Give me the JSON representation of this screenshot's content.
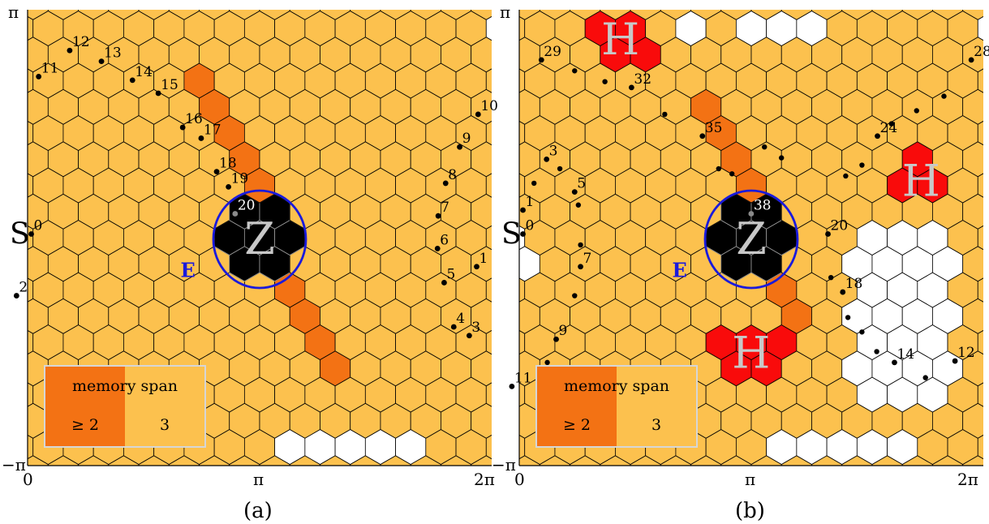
{
  "colors": {
    "hex_default": "#fcc14e",
    "hex_dark": "#f37214",
    "hex_black": "#000000",
    "hex_red": "#f90b0b",
    "hex_white": "#ffffff",
    "ellipse": "#1a1adc",
    "big_letter": "#c8c8c8"
  },
  "axis_labels": {
    "y_top": "π",
    "y_bottom": "−π",
    "x_0": "0",
    "x_pi": "π",
    "x_2pi": "2π"
  },
  "panels": [
    {
      "id": "a",
      "caption": "(a)",
      "start_label": "S",
      "ellipse_label": "E",
      "center_label": "Z",
      "hole_label": "H",
      "legend": {
        "title": "memory span",
        "left_value": "≥ 2",
        "right_value": "3"
      },
      "points": [
        {
          "n": "0",
          "x": 0.05,
          "y": 0.05
        },
        {
          "n": "1",
          "x": 6.08,
          "y": -0.4
        },
        {
          "n": "2",
          "x": -0.15,
          "y": -0.8
        },
        {
          "n": "3",
          "x": 5.98,
          "y": -1.35
        },
        {
          "n": "4",
          "x": 5.77,
          "y": -1.23
        },
        {
          "n": "5",
          "x": 5.64,
          "y": -0.62
        },
        {
          "n": "6",
          "x": 5.55,
          "y": -0.15
        },
        {
          "n": "7",
          "x": 5.56,
          "y": 0.3
        },
        {
          "n": "8",
          "x": 5.66,
          "y": 0.75
        },
        {
          "n": "9",
          "x": 5.85,
          "y": 1.25
        },
        {
          "n": "10",
          "x": 6.1,
          "y": 1.7
        },
        {
          "n": "11",
          "x": 0.15,
          "y": 2.22
        },
        {
          "n": "12",
          "x": 0.57,
          "y": 2.58
        },
        {
          "n": "13",
          "x": 1.0,
          "y": 2.43
        },
        {
          "n": "14",
          "x": 1.42,
          "y": 2.17
        },
        {
          "n": "15",
          "x": 1.77,
          "y": 1.99
        },
        {
          "n": "16",
          "x": 2.1,
          "y": 1.52
        },
        {
          "n": "17",
          "x": 2.35,
          "y": 1.37
        },
        {
          "n": "18",
          "x": 2.56,
          "y": 0.91
        },
        {
          "n": "19",
          "x": 2.72,
          "y": 0.7
        },
        {
          "n": "20",
          "x": 2.81,
          "y": 0.33,
          "white": true
        }
      ],
      "holes": [],
      "dark_cells": [
        [
          -2,
          6
        ],
        [
          -2,
          5
        ],
        [
          -1,
          4
        ],
        [
          -1,
          3
        ],
        [
          0,
          2
        ],
        [
          1,
          -2
        ],
        [
          1,
          -3
        ],
        [
          2,
          -4
        ],
        [
          2,
          -5
        ]
      ],
      "white_cells": [
        [
          1,
          -8
        ],
        [
          2,
          -8
        ],
        [
          3,
          -8
        ],
        [
          4,
          -8
        ],
        [
          5,
          -8
        ],
        [
          8,
          8
        ],
        [
          9,
          8
        ],
        [
          10,
          8
        ],
        [
          11,
          8
        ],
        [
          12,
          8
        ]
      ],
      "center_label_pos": [
        3.14,
        0.0
      ],
      "s_label_pos": [
        0.0,
        0.05
      ],
      "e_label_pos": [
        2.4,
        -0.45
      ]
    },
    {
      "id": "b",
      "caption": "(b)",
      "start_label": "S",
      "ellipse_label": "E",
      "center_label": "Z",
      "hole_label": "H",
      "legend": {
        "title": "memory span",
        "left_value": "≥ 2",
        "right_value": "3"
      },
      "points": [
        {
          "n": "0",
          "x": 0.05,
          "y": 0.05
        },
        {
          "n": "1",
          "x": 0.05,
          "y": 0.38
        },
        {
          "n": "3",
          "x": 0.37,
          "y": 1.08
        },
        {
          "n": "5",
          "x": 0.75,
          "y": 0.63
        },
        {
          "n": "7",
          "x": 0.83,
          "y": -0.4
        },
        {
          "n": "9",
          "x": 0.5,
          "y": -1.4
        },
        {
          "n": "11",
          "x": -0.1,
          "y": -2.05
        },
        {
          "n": "12",
          "x": 5.9,
          "y": -1.7
        },
        {
          "n": "14",
          "x": 5.08,
          "y": -1.72
        },
        {
          "n": "18",
          "x": 4.38,
          "y": -0.75
        },
        {
          "n": "20",
          "x": 4.18,
          "y": 0.05
        },
        {
          "n": "24",
          "x": 4.85,
          "y": 1.4
        },
        {
          "n": "28",
          "x": 6.12,
          "y": 2.45
        },
        {
          "n": "29",
          "x": 0.3,
          "y": 2.45
        },
        {
          "n": "32",
          "x": 1.52,
          "y": 2.07
        },
        {
          "n": "35",
          "x": 2.48,
          "y": 1.4
        },
        {
          "n": "38",
          "x": 3.14,
          "y": 0.33,
          "white": true
        }
      ],
      "extra_dots": [
        [
          0.2,
          0.75
        ],
        [
          0.55,
          0.95
        ],
        [
          0.8,
          0.45
        ],
        [
          0.83,
          -0.1
        ],
        [
          0.75,
          -0.8
        ],
        [
          0.38,
          -1.72
        ],
        [
          0.75,
          2.3
        ],
        [
          1.16,
          2.15
        ],
        [
          1.97,
          1.7
        ],
        [
          2.7,
          0.95
        ],
        [
          2.88,
          0.88
        ],
        [
          4.22,
          -0.55
        ],
        [
          4.45,
          -1.1
        ],
        [
          4.64,
          -1.3
        ],
        [
          4.84,
          -1.57
        ],
        [
          5.5,
          -1.93
        ],
        [
          4.42,
          0.85
        ],
        [
          4.64,
          1.0
        ],
        [
          5.04,
          1.57
        ],
        [
          5.38,
          1.75
        ],
        [
          5.75,
          1.95
        ],
        [
          3.32,
          1.25
        ],
        [
          3.55,
          1.1
        ]
      ],
      "holes": [
        [
          1.37,
          2.75
        ],
        [
          5.44,
          0.8
        ],
        [
          3.14,
          -1.57
        ]
      ],
      "dark_cells": [
        [
          -2,
          5
        ],
        [
          -1,
          4
        ],
        [
          -1,
          3
        ],
        [
          0,
          2
        ],
        [
          1,
          -2
        ],
        [
          1,
          -3
        ]
      ],
      "white_cells": [
        [
          1,
          -8
        ],
        [
          2,
          -8
        ],
        [
          3,
          -8
        ],
        [
          4,
          -8
        ],
        [
          5,
          -8
        ],
        [
          0,
          8
        ],
        [
          1,
          8
        ],
        [
          2,
          8
        ],
        [
          8,
          8
        ],
        [
          9,
          8
        ],
        [
          10,
          8
        ],
        [
          11,
          8
        ],
        [
          12,
          8
        ],
        [
          -2,
          8
        ],
        [
          -8,
          -1
        ],
        [
          -8,
          0
        ]
      ],
      "white_region": {
        "x0": 4.5,
        "x1": 5.95,
        "y0": -2.25,
        "y1": 0.35
      },
      "center_label_pos": [
        3.14,
        0.0
      ],
      "s_label_pos": [
        0.0,
        0.05
      ],
      "e_label_pos": [
        2.4,
        -0.45
      ]
    }
  ]
}
